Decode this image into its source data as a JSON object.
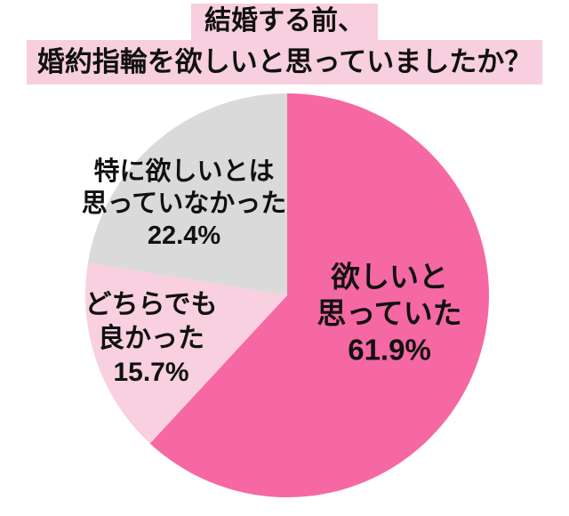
{
  "page": {
    "background": "#ffffff",
    "text_color": "#111111"
  },
  "title": {
    "line1": "結婚する前、",
    "line2": "婚約指輪を欲しいと思っていましたか？",
    "highlight_color": "#f8cfdf"
  },
  "chart_data": {
    "type": "pie",
    "title": "結婚する前、婚約指輪を欲しいと思っていましたか？",
    "start_angle": "12 o'clock",
    "direction": "clockwise",
    "legend": "none (labels placed on slices)",
    "slices": [
      {
        "label": "欲しいと思っていた",
        "value_percent": 61.9,
        "color": "#f668a3",
        "label_lines": [
          "欲しいと",
          "思っていた",
          "61.9%"
        ]
      },
      {
        "label": "どちらでも良かった",
        "value_percent": 15.7,
        "color": "#f9d0e0",
        "label_lines": [
          "どちらでも",
          "良かった",
          "15.7%"
        ]
      },
      {
        "label": "特に欲しいとは思っていなかった",
        "value_percent": 22.4,
        "color": "#dadada",
        "label_lines": [
          "特に欲しいとは",
          "思っていなかった",
          "22.4%"
        ]
      }
    ]
  }
}
